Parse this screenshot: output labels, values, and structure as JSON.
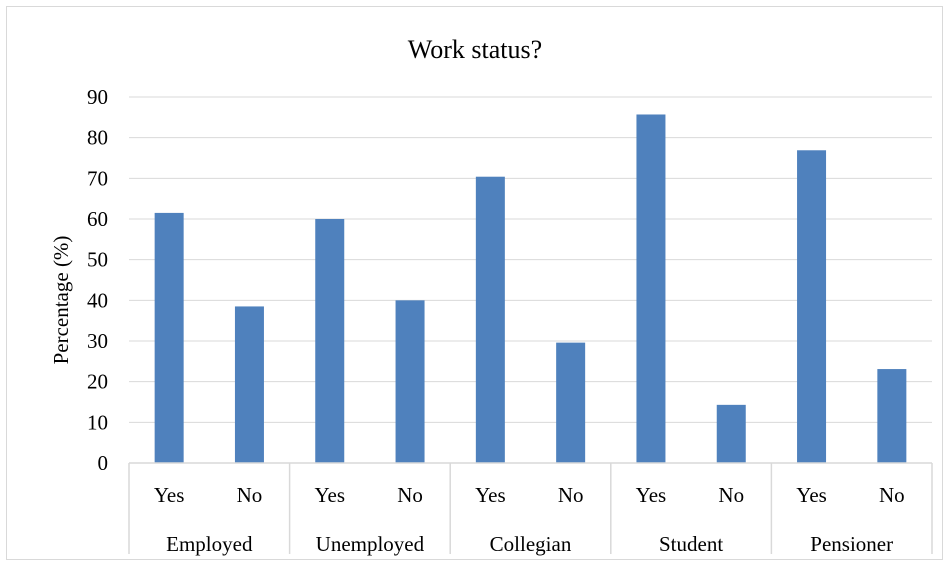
{
  "chart_data": {
    "type": "bar",
    "title": "Work status?",
    "ylabel": "Percentage (%)",
    "xlabel": "",
    "ylim": [
      0,
      90
    ],
    "yticks": [
      0,
      10,
      20,
      30,
      40,
      50,
      60,
      70,
      80,
      90
    ],
    "grid": true,
    "legend": "none",
    "bar_color": "#4f81bd",
    "grid_color": "#d9d9d9",
    "groups": [
      {
        "name": "Employed",
        "categories": [
          "Yes",
          "No"
        ],
        "values": [
          61.5,
          38.5
        ]
      },
      {
        "name": "Unemployed",
        "categories": [
          "Yes",
          "No"
        ],
        "values": [
          60,
          40
        ]
      },
      {
        "name": "Collegian",
        "categories": [
          "Yes",
          "No"
        ],
        "values": [
          70.4,
          29.6
        ]
      },
      {
        "name": "Student",
        "categories": [
          "Yes",
          "No"
        ],
        "values": [
          85.7,
          14.3
        ]
      },
      {
        "name": "Pensioner",
        "categories": [
          "Yes",
          "No"
        ],
        "values": [
          76.9,
          23.1
        ]
      }
    ]
  }
}
